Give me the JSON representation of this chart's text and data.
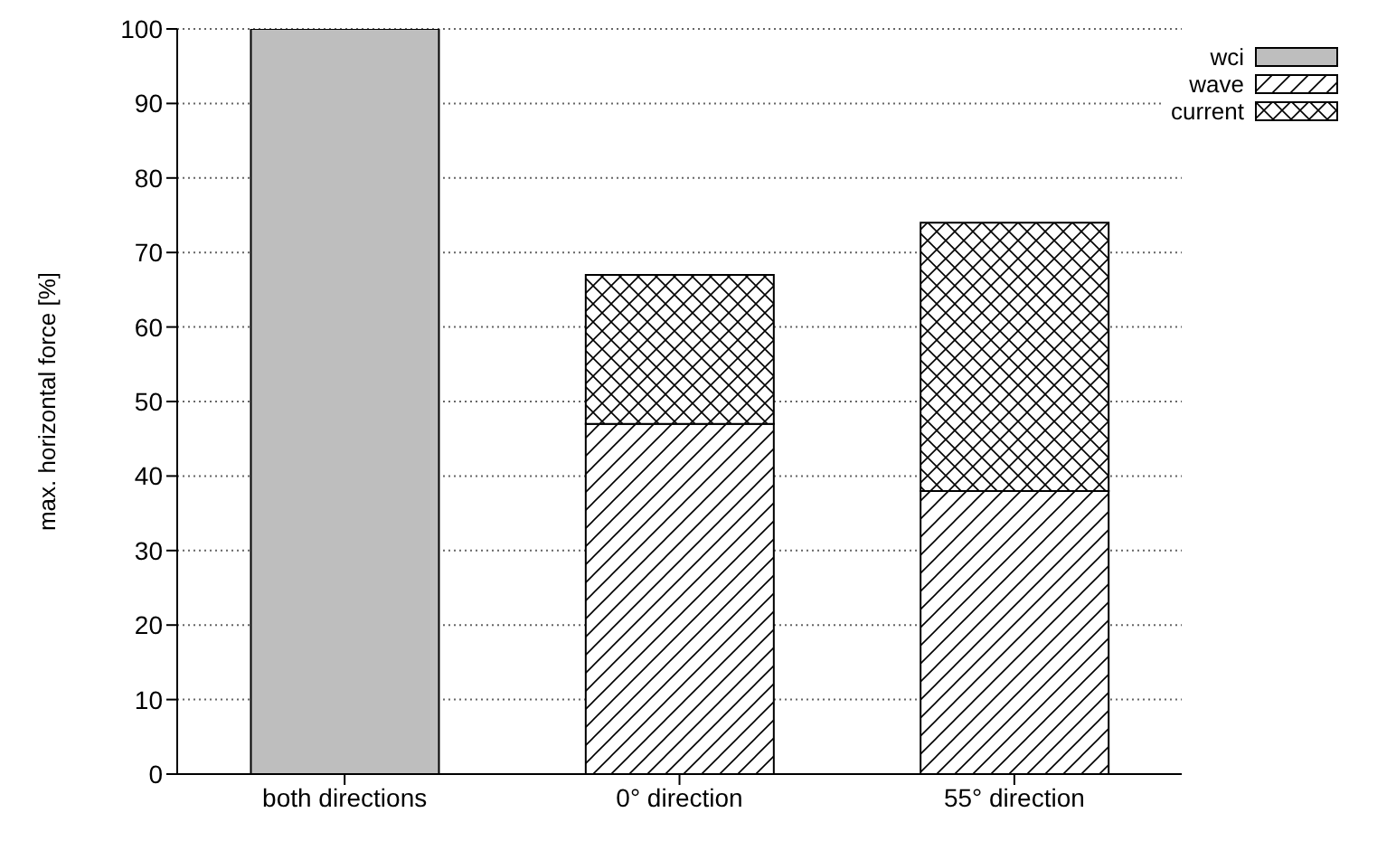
{
  "chart_data": {
    "type": "bar",
    "stacked": true,
    "ylabel": "max. horizontal force [%]",
    "categories": [
      "both directions",
      "0° direction",
      "55° direction"
    ],
    "series": [
      {
        "name": "wci",
        "color": "#bebebe",
        "values": [
          100,
          null,
          null
        ]
      },
      {
        "name": "wave",
        "color": "#000000",
        "values": [
          null,
          47,
          38
        ]
      },
      {
        "name": "current",
        "color": "#000000",
        "values": [
          null,
          20,
          36
        ]
      }
    ],
    "ylim": [
      0,
      100
    ],
    "yticks": [
      0,
      10,
      20,
      30,
      40,
      50,
      60,
      70,
      80,
      90,
      100
    ],
    "grid": "y",
    "legend": "top right"
  }
}
